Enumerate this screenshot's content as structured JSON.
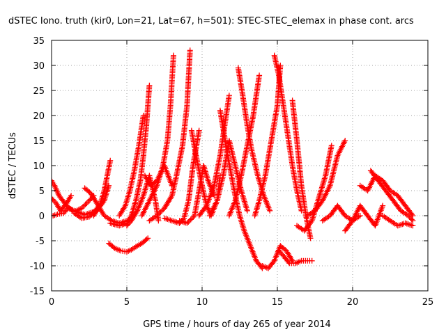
{
  "chart_data": {
    "type": "scatter",
    "title": "dSTEC Iono. truth (kir0, Lon=21, Lat=67, h=501): STEC-STEC_elemax in phase cont. arcs",
    "xlabel": "GPS time / hours of day 265 of year 2014",
    "ylabel": "dSTEC  / TECUs",
    "xlim": [
      0,
      25
    ],
    "ylim": [
      -15,
      35
    ],
    "xticks": [
      0,
      5,
      10,
      15,
      20,
      25
    ],
    "yticks": [
      -15,
      -10,
      -5,
      0,
      5,
      10,
      15,
      20,
      25,
      30,
      35
    ],
    "grid": true,
    "marker": "+",
    "color": "#ff0000",
    "series": [
      {
        "x": [
          0,
          0.2,
          0.5,
          1.0,
          1.5,
          2.0,
          2.5,
          2.8
        ],
        "y": [
          7,
          6,
          4,
          2,
          0.8,
          1.5,
          3,
          4
        ]
      },
      {
        "x": [
          0,
          0.3,
          0.6,
          1.0,
          1.3
        ],
        "y": [
          3.5,
          2.5,
          1,
          2.5,
          4
        ]
      },
      {
        "x": [
          0.1,
          0.4,
          0.8,
          1.1,
          1.5,
          2.2,
          2.8,
          3.2
        ],
        "y": [
          0,
          0.3,
          0.5,
          1.5,
          1,
          0.2,
          0.8,
          2
        ]
      },
      {
        "x": [
          1.5,
          2.0,
          2.5,
          3.0,
          3.5,
          3.8
        ],
        "y": [
          0.5,
          -0.5,
          -0.2,
          1,
          3,
          6
        ]
      },
      {
        "x": [
          2.2,
          2.6,
          3.0,
          3.5,
          4.0,
          4.5,
          5.0
        ],
        "y": [
          5.5,
          4.5,
          2.5,
          0,
          -1,
          -1.5,
          -1
        ]
      },
      {
        "x": [
          2.8,
          3.2,
          3.5,
          3.7,
          3.9
        ],
        "y": [
          0,
          2,
          5,
          8,
          11
        ]
      },
      {
        "x": [
          3.8,
          4.2,
          4.6,
          5.0,
          5.3,
          5.6,
          6.0,
          6.4
        ],
        "y": [
          -5.5,
          -6.5,
          -7,
          -7.2,
          -6.8,
          -6.2,
          -5.5,
          -4.5
        ]
      },
      {
        "x": [
          3.9,
          4.5,
          5.0,
          5.3,
          5.6,
          5.9,
          6.1,
          6.3,
          6.5
        ],
        "y": [
          -1.5,
          -2,
          -1.5,
          0,
          3,
          7,
          12,
          18,
          26
        ]
      },
      {
        "x": [
          4.5,
          4.9,
          5.2,
          5.5,
          5.8,
          6.1
        ],
        "y": [
          0,
          2,
          5,
          9,
          14,
          20
        ]
      },
      {
        "x": [
          5.0,
          5.3,
          5.7,
          6.1,
          6.5,
          6.9,
          7.1
        ],
        "y": [
          -2,
          -1,
          1,
          4,
          8,
          3,
          -1
        ]
      },
      {
        "x": [
          6.0,
          6.5,
          7.0,
          7.4,
          7.7,
          7.9,
          8.1
        ],
        "y": [
          0,
          3,
          6,
          10,
          15,
          22,
          32
        ]
      },
      {
        "x": [
          6.2,
          6.6,
          7.0,
          7.5,
          8.0
        ],
        "y": [
          8,
          6,
          7,
          10,
          6
        ]
      },
      {
        "x": [
          6.5,
          7.0,
          7.5,
          8.0,
          8.3,
          8.7,
          9.0,
          9.2
        ],
        "y": [
          -1,
          0,
          1.5,
          4,
          8,
          14,
          22,
          33
        ]
      },
      {
        "x": [
          7.5,
          8.0,
          8.5,
          8.8,
          9.1,
          9.4,
          9.8
        ],
        "y": [
          -0.5,
          -1,
          -1.5,
          -0.5,
          3,
          10,
          17
        ]
      },
      {
        "x": [
          8.5,
          9.0,
          9.5,
          9.8,
          10.1,
          10.4,
          10.8
        ],
        "y": [
          -1,
          -1.5,
          0,
          5,
          10,
          7,
          4
        ]
      },
      {
        "x": [
          9.3,
          9.6,
          10.0,
          10.3,
          10.6,
          11.0,
          11.2
        ],
        "y": [
          17,
          12,
          6,
          2,
          0,
          3,
          8
        ]
      },
      {
        "x": [
          9.8,
          10.3,
          10.8,
          11.2,
          11.5,
          11.8
        ],
        "y": [
          0,
          2,
          6,
          12,
          18,
          24
        ]
      },
      {
        "x": [
          10.5,
          11.0,
          11.4,
          11.8,
          12.2,
          12.6,
          13.0
        ],
        "y": [
          0,
          3,
          8,
          15,
          10,
          5,
          1
        ]
      },
      {
        "x": [
          11.2,
          11.7,
          12.2,
          12.5,
          12.8,
          13.2,
          13.6,
          14.0
        ],
        "y": [
          21,
          12,
          4,
          0,
          -3,
          -6,
          -9,
          -10.5
        ]
      },
      {
        "x": [
          11.8,
          12.2,
          12.6,
          13.0,
          13.4,
          13.8
        ],
        "y": [
          0,
          3,
          8,
          14,
          20,
          28
        ]
      },
      {
        "x": [
          12.4,
          12.7,
          13.0,
          13.3,
          13.7,
          14.1,
          14.5
        ],
        "y": [
          29.5,
          24,
          18,
          13,
          8,
          4,
          1
        ]
      },
      {
        "x": [
          13.5,
          13.8,
          14.2,
          14.6,
          15.0,
          15.2
        ],
        "y": [
          0,
          3,
          8,
          15,
          22,
          30
        ]
      },
      {
        "x": [
          14.0,
          14.4,
          14.8,
          15.2,
          15.6,
          16.0
        ],
        "y": [
          -10,
          -10.5,
          -9,
          -6,
          -7,
          -9
        ]
      },
      {
        "x": [
          14.8,
          15.1,
          15.4,
          15.7,
          16.0,
          16.3,
          16.6
        ],
        "y": [
          32,
          28,
          22,
          16,
          10,
          5,
          1
        ]
      },
      {
        "x": [
          15.1,
          15.4,
          15.8,
          16.2,
          16.6,
          17.0,
          17.3
        ],
        "y": [
          -7,
          -8,
          -9.5,
          -9.5,
          -9,
          -9,
          -9
        ]
      },
      {
        "x": [
          16.0,
          16.3,
          16.6,
          16.9,
          17.2
        ],
        "y": [
          23,
          15,
          6,
          0,
          -4.5
        ]
      },
      {
        "x": [
          16.3,
          16.8,
          17.3,
          17.7,
          18.2,
          18.6
        ],
        "y": [
          -2,
          -3,
          -1,
          3,
          8,
          14
        ]
      },
      {
        "x": [
          17.0,
          17.5,
          18.0,
          18.5,
          19.0,
          19.5
        ],
        "y": [
          0,
          1,
          3,
          6,
          12,
          15
        ]
      },
      {
        "x": [
          18.0,
          18.5,
          19.0,
          19.5,
          20.0,
          20.5
        ],
        "y": [
          -1,
          0,
          2,
          0,
          -1,
          0
        ]
      },
      {
        "x": [
          19.5,
          20.0,
          20.5,
          21.0,
          21.5,
          22.0
        ],
        "y": [
          -3,
          -1,
          2,
          0,
          -2,
          2
        ]
      },
      {
        "x": [
          20.5,
          21.0,
          21.5,
          22.0,
          22.5,
          23.0,
          23.5,
          24.0
        ],
        "y": [
          6,
          5,
          8,
          7,
          5,
          4,
          2,
          0
        ]
      },
      {
        "x": [
          21.2,
          21.7,
          22.2,
          22.7,
          23.2,
          23.7,
          24.0
        ],
        "y": [
          9,
          7,
          5,
          3,
          1,
          0,
          -1
        ]
      },
      {
        "x": [
          22.0,
          22.5,
          23.0,
          23.5,
          24.0
        ],
        "y": [
          0,
          -1,
          -2,
          -1.5,
          -2
        ]
      }
    ]
  }
}
